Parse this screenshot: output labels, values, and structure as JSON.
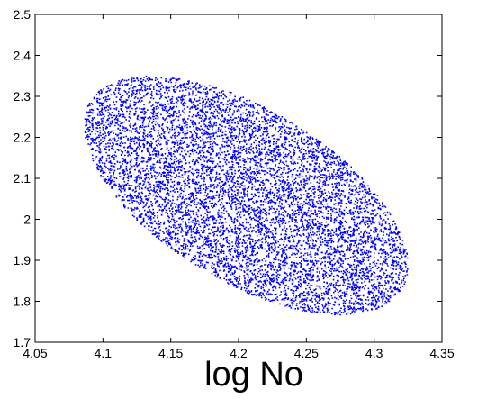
{
  "chart_data": {
    "type": "scatter",
    "title": "",
    "xlabel": "log No",
    "ylabel": "",
    "xlim": [
      4.05,
      4.35
    ],
    "ylim": [
      1.7,
      2.5
    ],
    "xticks": [
      "4.05",
      "4.1",
      "4.15",
      "4.2",
      "4.25",
      "4.3",
      "4.35"
    ],
    "yticks": [
      "1.7",
      "1.8",
      "1.9",
      "2",
      "2.1",
      "2.2",
      "2.3",
      "2.4",
      "2.5"
    ],
    "grid": false,
    "point_color": "#0000ff",
    "point_cloud": {
      "shape": "ellipse",
      "center": [
        4.205,
        2.06
      ],
      "x_extent": [
        4.075,
        4.335
      ],
      "y_extent": [
        1.72,
        2.4
      ],
      "correlation": "negative",
      "approx_points": 20000
    }
  }
}
